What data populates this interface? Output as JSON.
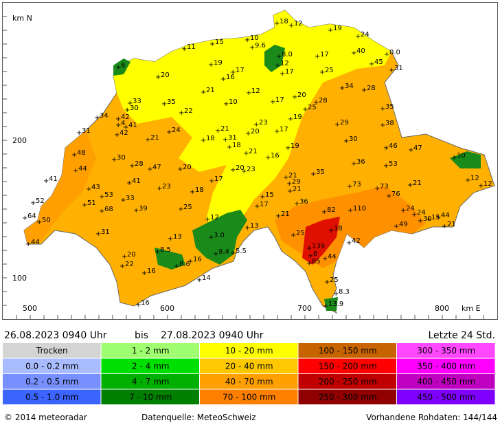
{
  "map": {
    "y_axis_label": "km N",
    "x_axis_label": "km E",
    "y_labels": [
      "200",
      "100"
    ],
    "x_labels": [
      "500",
      "600",
      "700",
      "800"
    ],
    "stations": [
      "18",
      "12",
      "19",
      "24",
      "11",
      "15",
      "10",
      "9.6",
      "8.0",
      "17",
      "40",
      "0.0",
      "45",
      "31",
      "8",
      "19",
      "17",
      "16",
      "12",
      "17",
      "25",
      "20",
      "21",
      "12",
      "34",
      "28",
      "33",
      "35",
      "30",
      "10",
      "17",
      "20",
      "25",
      "28",
      "22",
      "35",
      "34",
      "42",
      "41",
      "4",
      "42",
      "31",
      "24",
      "21",
      "23",
      "17",
      "19",
      "29",
      "38",
      "21",
      "18",
      "31",
      "20",
      "18",
      "30",
      "48",
      "30",
      "21",
      "16",
      "19",
      "46",
      "47",
      "10",
      "44",
      "28",
      "47",
      "20",
      "20",
      "23",
      "36",
      "53",
      "41",
      "17",
      "21",
      "29",
      "21",
      "35",
      "41",
      "43",
      "23",
      "18",
      "73",
      "73",
      "76",
      "21",
      "12",
      "12",
      "53",
      "33",
      "52",
      "51",
      "68",
      "39",
      "25",
      "15",
      "17",
      "36",
      "24",
      "24",
      "30",
      "15",
      "44",
      "21",
      "64",
      "50",
      "12",
      "21",
      "82",
      "110",
      "49",
      "13",
      "31",
      "13",
      "3.0",
      "25",
      "18",
      "42",
      "44",
      "139",
      "6",
      "8.5",
      "5.5",
      "9.4",
      "20",
      "16",
      "85",
      "44",
      "8.6",
      "22",
      "16",
      "25",
      "14",
      "8.3",
      "13.9",
      "16"
    ]
  },
  "header": {
    "period_from": "26.08.2023 0940 Uhr",
    "period_word": "bis",
    "period_to": "27.08.2023 0940 Uhr",
    "window": "Letzte 24 Std."
  },
  "legend": [
    {
      "label": "Trocken",
      "color": "#d4d4d4"
    },
    {
      "label": "0.0 - 0.2 mm",
      "color": "#a8bcff"
    },
    {
      "label": "0.2 - 0.5 mm",
      "color": "#7890ff"
    },
    {
      "label": "0.5 - 1.0 mm",
      "color": "#3c64ff"
    },
    {
      "label": "1 - 2 mm",
      "color": "#a0ff70"
    },
    {
      "label": "2 - 4 mm",
      "color": "#00e000"
    },
    {
      "label": "4 - 7 mm",
      "color": "#00b000"
    },
    {
      "label": "7 - 10 mm",
      "color": "#008000"
    },
    {
      "label": "10 - 20 mm",
      "color": "#ffff00"
    },
    {
      "label": "20 - 40 mm",
      "color": "#ffc800"
    },
    {
      "label": "40 - 70 mm",
      "color": "#ffa000"
    },
    {
      "label": "70 - 100 mm",
      "color": "#ff8000"
    },
    {
      "label": "100 - 150 mm",
      "color": "#c86400"
    },
    {
      "label": "150 - 200 mm",
      "color": "#ff0000"
    },
    {
      "label": "200 - 250 mm",
      "color": "#c00000"
    },
    {
      "label": "250 - 300 mm",
      "color": "#900000"
    },
    {
      "label": "300 - 350 mm",
      "color": "#ff48ff"
    },
    {
      "label": "350 - 400 mm",
      "color": "#ff00ff"
    },
    {
      "label": "400 - 450 mm",
      "color": "#c000c0"
    },
    {
      "label": "450 - 500 mm",
      "color": "#8000ff"
    }
  ],
  "footer": {
    "copyright": "© 2014  meteoradar",
    "source": "Datenquelle: MeteoSchweiz",
    "raw_data": "Vorhandene Rohdaten: 144/144"
  }
}
